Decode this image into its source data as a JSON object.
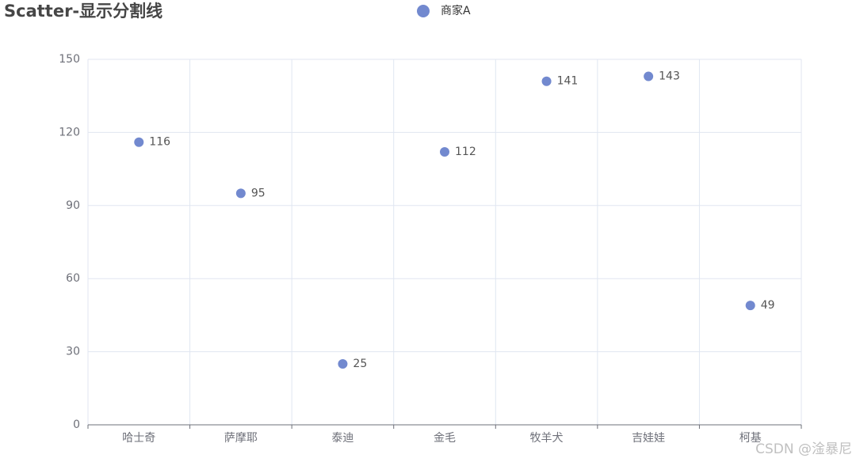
{
  "chart_data": {
    "type": "scatter",
    "title": "Scatter-显示分割线",
    "categories": [
      "哈士奇",
      "萨摩耶",
      "泰迪",
      "金毛",
      "牧羊犬",
      "吉娃娃",
      "柯基"
    ],
    "series": [
      {
        "name": "商家A",
        "color": "#7289cf",
        "values": [
          116,
          95,
          25,
          112,
          141,
          143,
          49
        ]
      }
    ],
    "ylim": [
      0,
      150
    ],
    "yticks": [
      0,
      30,
      60,
      90,
      120,
      150
    ],
    "grid": true,
    "xgrid": true,
    "legend": "top"
  },
  "watermark": "CSDN @淦暴尼"
}
